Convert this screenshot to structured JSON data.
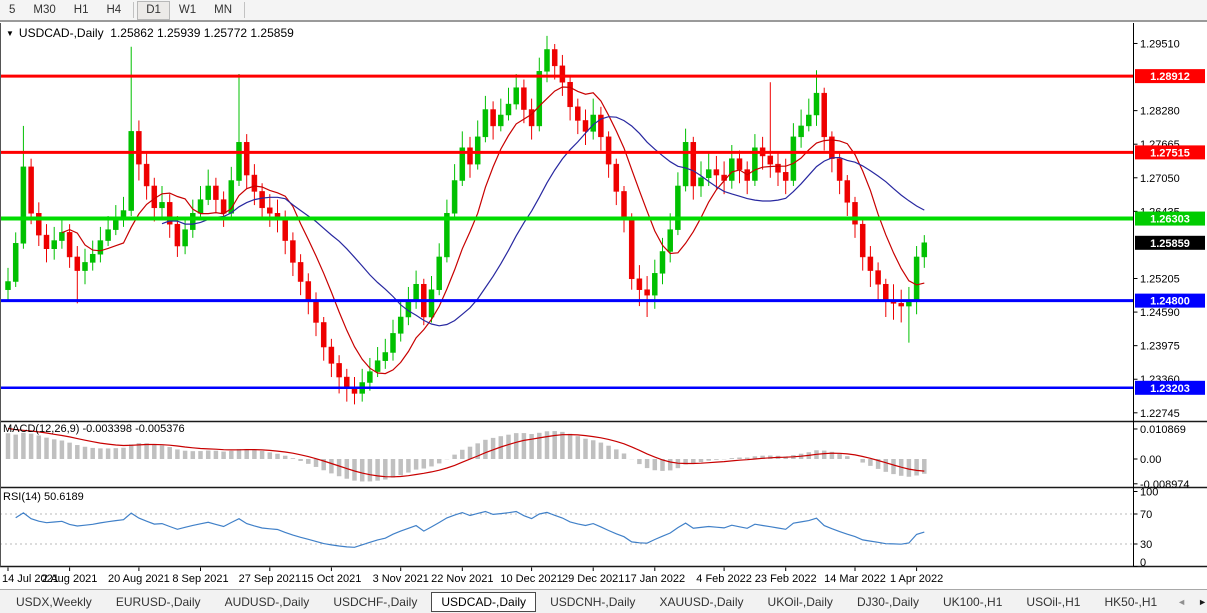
{
  "toolbar": {
    "items": [
      {
        "label": "5"
      },
      {
        "label": "M30"
      },
      {
        "label": "H1"
      },
      {
        "label": "H4"
      },
      {
        "separator": true
      },
      {
        "label": "D1",
        "active": true
      },
      {
        "label": "W1"
      },
      {
        "label": "MN"
      },
      {
        "separator": true
      }
    ]
  },
  "chart_title": {
    "dropdown_icon": "▼",
    "symbol": "USDCAD-,Daily",
    "quote": "1.25862 1.25939 1.25772 1.25859"
  },
  "chart_data": {
    "type": "candlestick",
    "title": "USDCAD-,Daily",
    "up_color": "#00C000",
    "down_color": "#EE0000",
    "x_labels": [
      {
        "label": "14 Jul 2021",
        "index": 0
      },
      {
        "label": "2 Aug 2021",
        "index": 8
      },
      {
        "label": "20 Aug 2021",
        "index": 17
      },
      {
        "label": "8 Sep 2021",
        "index": 25
      },
      {
        "label": "27 Sep 2021",
        "index": 34
      },
      {
        "label": "15 Oct 2021",
        "index": 42
      },
      {
        "label": "3 Nov 2021",
        "index": 51
      },
      {
        "label": "22 Nov 2021",
        "index": 59
      },
      {
        "label": "10 Dec 2021",
        "index": 68
      },
      {
        "label": "29 Dec 2021",
        "index": 76
      },
      {
        "label": "17 Jan 2022",
        "index": 84
      },
      {
        "label": "4 Feb 2022",
        "index": 93
      },
      {
        "label": "23 Feb 2022",
        "index": 101
      },
      {
        "label": "14 Mar 2022",
        "index": 110
      },
      {
        "label": "1 Apr 2022",
        "index": 118
      }
    ],
    "y_ticks": [
      {
        "label": "1.29510",
        "value": 1.2951
      },
      {
        "label": "1.28280",
        "value": 1.2828
      },
      {
        "label": "1.27665",
        "value": 1.27665
      },
      {
        "label": "1.27050",
        "value": 1.2705
      },
      {
        "label": "1.26435",
        "value": 1.26435
      },
      {
        "label": "1.25205",
        "value": 1.25205
      },
      {
        "label": "1.24590",
        "value": 1.2459
      },
      {
        "label": "1.23975",
        "value": 1.23975
      },
      {
        "label": "1.23360",
        "value": 1.2336
      },
      {
        "label": "1.22745",
        "value": 1.22745
      }
    ],
    "y_axis_badges": [
      {
        "label": "1.28912",
        "value": 1.28912,
        "color": "#FF0000"
      },
      {
        "label": "1.27515",
        "value": 1.27515,
        "color": "#FF0000"
      },
      {
        "label": "1.26303",
        "value": 1.26303,
        "color": "#00CC00"
      },
      {
        "label": "1.25859",
        "value": 1.25859,
        "color": "#000000"
      },
      {
        "label": "1.24800",
        "value": 1.248,
        "color": "#0000FF"
      },
      {
        "label": "1.23203",
        "value": 1.23203,
        "color": "#0000FF"
      }
    ],
    "h_lines": [
      {
        "value": 1.28912,
        "color": "#FF0000",
        "width": 3
      },
      {
        "value": 1.27515,
        "color": "#FF0000",
        "width": 3
      },
      {
        "value": 1.26303,
        "color": "#00DC00",
        "width": 4
      },
      {
        "value": 1.248,
        "color": "#0000FF",
        "width": 3
      },
      {
        "value": 1.23203,
        "color": "#0000FF",
        "width": 2.5
      }
    ],
    "current_price": {
      "label": "1.25859",
      "value": 1.25859
    },
    "moving_averages": [
      {
        "period": 8,
        "color": "#C80000"
      },
      {
        "period": 21,
        "color": "#2828A0"
      }
    ],
    "price_axis_range": {
      "top": 1.29885,
      "bottom": 1.22595
    },
    "ohlc": [
      [
        1.25,
        1.254,
        1.248,
        1.2515
      ],
      [
        1.2515,
        1.2605,
        1.2505,
        1.2585
      ],
      [
        1.2585,
        1.28,
        1.2575,
        1.2725
      ],
      [
        1.2725,
        1.274,
        1.262,
        1.264
      ],
      [
        1.264,
        1.266,
        1.258,
        1.26
      ],
      [
        1.26,
        1.262,
        1.255,
        1.2575
      ],
      [
        1.2575,
        1.2615,
        1.2555,
        1.259
      ],
      [
        1.259,
        1.263,
        1.2575,
        1.2605
      ],
      [
        1.2605,
        1.262,
        1.254,
        1.256
      ],
      [
        1.256,
        1.258,
        1.2475,
        1.2535
      ],
      [
        1.2535,
        1.2575,
        1.251,
        1.255
      ],
      [
        1.255,
        1.259,
        1.2535,
        1.2565
      ],
      [
        1.2565,
        1.2615,
        1.255,
        1.259
      ],
      [
        1.259,
        1.2635,
        1.258,
        1.261
      ],
      [
        1.261,
        1.2655,
        1.26,
        1.263
      ],
      [
        1.263,
        1.267,
        1.2615,
        1.2645
      ],
      [
        1.2645,
        1.2945,
        1.2635,
        1.279
      ],
      [
        1.279,
        1.281,
        1.27,
        1.273
      ],
      [
        1.273,
        1.275,
        1.2665,
        1.269
      ],
      [
        1.269,
        1.2705,
        1.2625,
        1.265
      ],
      [
        1.265,
        1.269,
        1.263,
        1.266
      ],
      [
        1.266,
        1.2675,
        1.2595,
        1.262
      ],
      [
        1.262,
        1.2635,
        1.256,
        1.258
      ],
      [
        1.258,
        1.263,
        1.2565,
        1.261
      ],
      [
        1.261,
        1.2665,
        1.2595,
        1.264
      ],
      [
        1.264,
        1.269,
        1.263,
        1.2665
      ],
      [
        1.2665,
        1.272,
        1.2655,
        1.269
      ],
      [
        1.269,
        1.2705,
        1.264,
        1.2665
      ],
      [
        1.2665,
        1.268,
        1.2615,
        1.264
      ],
      [
        1.264,
        1.2725,
        1.263,
        1.27
      ],
      [
        1.27,
        1.2895,
        1.269,
        1.277
      ],
      [
        1.277,
        1.2785,
        1.2685,
        1.271
      ],
      [
        1.271,
        1.273,
        1.2655,
        1.268
      ],
      [
        1.268,
        1.2695,
        1.263,
        1.265
      ],
      [
        1.265,
        1.2675,
        1.2615,
        1.264
      ],
      [
        1.264,
        1.2665,
        1.2605,
        1.263
      ],
      [
        1.263,
        1.2645,
        1.2565,
        1.259
      ],
      [
        1.259,
        1.2605,
        1.2525,
        1.255
      ],
      [
        1.255,
        1.2565,
        1.249,
        1.2515
      ],
      [
        1.2515,
        1.253,
        1.2455,
        1.248
      ],
      [
        1.248,
        1.2495,
        1.2415,
        1.244
      ],
      [
        1.244,
        1.245,
        1.237,
        1.2395
      ],
      [
        1.2395,
        1.241,
        1.234,
        1.2365
      ],
      [
        1.2365,
        1.238,
        1.231,
        1.234
      ],
      [
        1.234,
        1.2355,
        1.2295,
        1.232
      ],
      [
        1.232,
        1.234,
        1.229,
        1.231
      ],
      [
        1.231,
        1.2355,
        1.2295,
        1.233
      ],
      [
        1.233,
        1.2375,
        1.2315,
        1.235
      ],
      [
        1.235,
        1.2395,
        1.234,
        1.237
      ],
      [
        1.237,
        1.241,
        1.2355,
        1.2385
      ],
      [
        1.2385,
        1.2445,
        1.237,
        1.242
      ],
      [
        1.242,
        1.248,
        1.2405,
        1.245
      ],
      [
        1.245,
        1.2505,
        1.2435,
        1.248
      ],
      [
        1.248,
        1.2535,
        1.2465,
        1.251
      ],
      [
        1.251,
        1.252,
        1.2435,
        1.245
      ],
      [
        1.245,
        1.2525,
        1.244,
        1.25
      ],
      [
        1.25,
        1.2585,
        1.249,
        1.256
      ],
      [
        1.256,
        1.2665,
        1.255,
        1.264
      ],
      [
        1.264,
        1.273,
        1.263,
        1.27
      ],
      [
        1.27,
        1.279,
        1.269,
        1.276
      ],
      [
        1.276,
        1.278,
        1.2705,
        1.273
      ],
      [
        1.273,
        1.281,
        1.272,
        1.278
      ],
      [
        1.278,
        1.2855,
        1.277,
        1.283
      ],
      [
        1.283,
        1.2845,
        1.2775,
        1.28
      ],
      [
        1.28,
        1.285,
        1.279,
        1.282
      ],
      [
        1.282,
        1.287,
        1.281,
        1.284
      ],
      [
        1.284,
        1.2895,
        1.283,
        1.287
      ],
      [
        1.287,
        1.2885,
        1.2805,
        1.283
      ],
      [
        1.283,
        1.285,
        1.2775,
        1.28
      ],
      [
        1.28,
        1.2925,
        1.279,
        1.29
      ],
      [
        1.29,
        1.2965,
        1.288,
        1.294
      ],
      [
        1.294,
        1.295,
        1.2885,
        1.291
      ],
      [
        1.291,
        1.293,
        1.2855,
        1.288
      ],
      [
        1.288,
        1.289,
        1.281,
        1.2835
      ],
      [
        1.2835,
        1.285,
        1.2785,
        1.281
      ],
      [
        1.281,
        1.283,
        1.2765,
        1.279
      ],
      [
        1.279,
        1.285,
        1.2775,
        1.282
      ],
      [
        1.282,
        1.2835,
        1.2755,
        1.278
      ],
      [
        1.278,
        1.279,
        1.2705,
        1.273
      ],
      [
        1.273,
        1.274,
        1.2655,
        1.268
      ],
      [
        1.268,
        1.269,
        1.2605,
        1.263
      ],
      [
        1.263,
        1.264,
        1.25,
        1.252
      ],
      [
        1.252,
        1.2545,
        1.247,
        1.25
      ],
      [
        1.25,
        1.2525,
        1.245,
        1.249
      ],
      [
        1.249,
        1.2555,
        1.2465,
        1.253
      ],
      [
        1.253,
        1.2595,
        1.251,
        1.257
      ],
      [
        1.257,
        1.264,
        1.255,
        1.261
      ],
      [
        1.261,
        1.2715,
        1.26,
        1.269
      ],
      [
        1.269,
        1.2795,
        1.268,
        1.277
      ],
      [
        1.277,
        1.278,
        1.2665,
        1.269
      ],
      [
        1.269,
        1.2735,
        1.267,
        1.2705
      ],
      [
        1.2705,
        1.275,
        1.269,
        1.272
      ],
      [
        1.272,
        1.2745,
        1.2685,
        1.271
      ],
      [
        1.271,
        1.2735,
        1.2675,
        1.27
      ],
      [
        1.27,
        1.2765,
        1.2685,
        1.274
      ],
      [
        1.274,
        1.2755,
        1.2695,
        1.272
      ],
      [
        1.272,
        1.2735,
        1.2675,
        1.27
      ],
      [
        1.27,
        1.2785,
        1.269,
        1.276
      ],
      [
        1.276,
        1.278,
        1.272,
        1.2745
      ],
      [
        1.2745,
        1.288,
        1.2705,
        1.273
      ],
      [
        1.273,
        1.275,
        1.269,
        1.2715
      ],
      [
        1.2715,
        1.274,
        1.2675,
        1.27
      ],
      [
        1.27,
        1.2805,
        1.269,
        1.278
      ],
      [
        1.278,
        1.283,
        1.276,
        1.28
      ],
      [
        1.28,
        1.285,
        1.279,
        1.282
      ],
      [
        1.282,
        1.2902,
        1.28,
        1.286
      ],
      [
        1.286,
        1.287,
        1.2755,
        1.278
      ],
      [
        1.278,
        1.279,
        1.2715,
        1.274
      ],
      [
        1.274,
        1.275,
        1.2675,
        1.27
      ],
      [
        1.27,
        1.271,
        1.2635,
        1.266
      ],
      [
        1.266,
        1.267,
        1.2595,
        1.262
      ],
      [
        1.262,
        1.263,
        1.2535,
        1.256
      ],
      [
        1.256,
        1.258,
        1.2505,
        1.2535
      ],
      [
        1.2535,
        1.255,
        1.248,
        1.251
      ],
      [
        1.251,
        1.252,
        1.245,
        1.248
      ],
      [
        1.248,
        1.251,
        1.2445,
        1.2475
      ],
      [
        1.2475,
        1.25,
        1.244,
        1.247
      ],
      [
        1.247,
        1.2505,
        1.2403,
        1.248
      ],
      [
        1.248,
        1.258,
        1.2455,
        1.256
      ],
      [
        1.256,
        1.26,
        1.254,
        1.2586
      ]
    ],
    "macd": {
      "label": "MACD(12,26,9) -0.003398 -0.005376",
      "params": [
        12,
        26,
        9
      ],
      "value": -0.003398,
      "signal_value": -0.005376,
      "axis_ticks": [
        {
          "label": "0.010869",
          "value": 0.010869
        },
        {
          "label": "0.00",
          "value": 0.0
        },
        {
          "label": "-0.008974",
          "value": -0.008974
        }
      ],
      "histogram_color": "#C0C0C0",
      "signal_color": "#C80000"
    },
    "rsi": {
      "label": "RSI(14) 50.6189",
      "period": 14,
      "value": 50.6189,
      "axis_ticks": [
        {
          "label": "100",
          "value": 100
        },
        {
          "label": "70",
          "value": 70
        },
        {
          "label": "30",
          "value": 30
        },
        {
          "label": "0",
          "value": 0
        }
      ],
      "levels": [
        70,
        30
      ],
      "level_color": "#B8B8B8",
      "color": "#4080C8"
    }
  },
  "tabs": {
    "items": [
      {
        "label": "USDX,Weekly"
      },
      {
        "label": "EURUSD-,Daily"
      },
      {
        "label": "AUDUSD-,Daily"
      },
      {
        "label": "USDCHF-,Daily"
      },
      {
        "label": "USDCAD-,Daily",
        "active": true
      },
      {
        "label": "USDCNH-,Daily"
      },
      {
        "label": "XAUUSD-,Daily"
      },
      {
        "label": "UKOil-,Daily"
      },
      {
        "label": "DJ30-,Daily"
      },
      {
        "label": "UK100-,H1"
      },
      {
        "label": "USOil-,H1"
      },
      {
        "label": "HK50-,H1"
      }
    ],
    "scroll_left_icon": "◄",
    "scroll_right_icon": "►"
  }
}
